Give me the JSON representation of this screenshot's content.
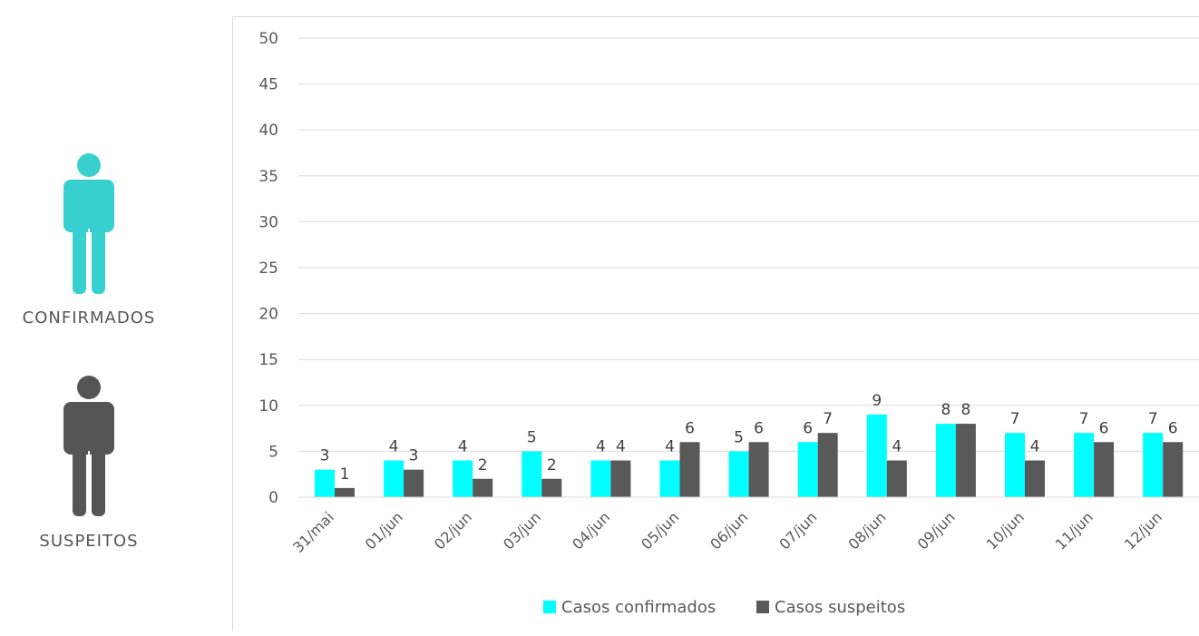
{
  "left_panel": {
    "confirmed_label": "CONFIRMADOS",
    "suspect_label": "SUSPEITOS",
    "confirmed_color": "#38CFCF",
    "suspect_color": "#555555"
  },
  "chart_data": {
    "type": "bar",
    "categories": [
      "31/mai",
      "01/jun",
      "02/jun",
      "03/jun",
      "04/jun",
      "05/jun",
      "06/jun",
      "07/jun",
      "08/jun",
      "09/jun",
      "10/jun",
      "11/jun",
      "12/jun"
    ],
    "series": [
      {
        "name": "Casos confirmados",
        "color": "#00FFFF",
        "values": [
          3,
          4,
          4,
          5,
          4,
          4,
          5,
          6,
          9,
          8,
          7,
          7,
          7
        ]
      },
      {
        "name": "Casos suspeitos",
        "color": "#595959",
        "values": [
          1,
          3,
          2,
          2,
          4,
          6,
          6,
          7,
          4,
          8,
          4,
          6,
          6
        ]
      }
    ],
    "ylim": [
      0,
      50
    ],
    "yticks": [
      0,
      5,
      10,
      15,
      20,
      25,
      30,
      35,
      40,
      45,
      50
    ],
    "grid": true,
    "legend_position": "bottom"
  }
}
